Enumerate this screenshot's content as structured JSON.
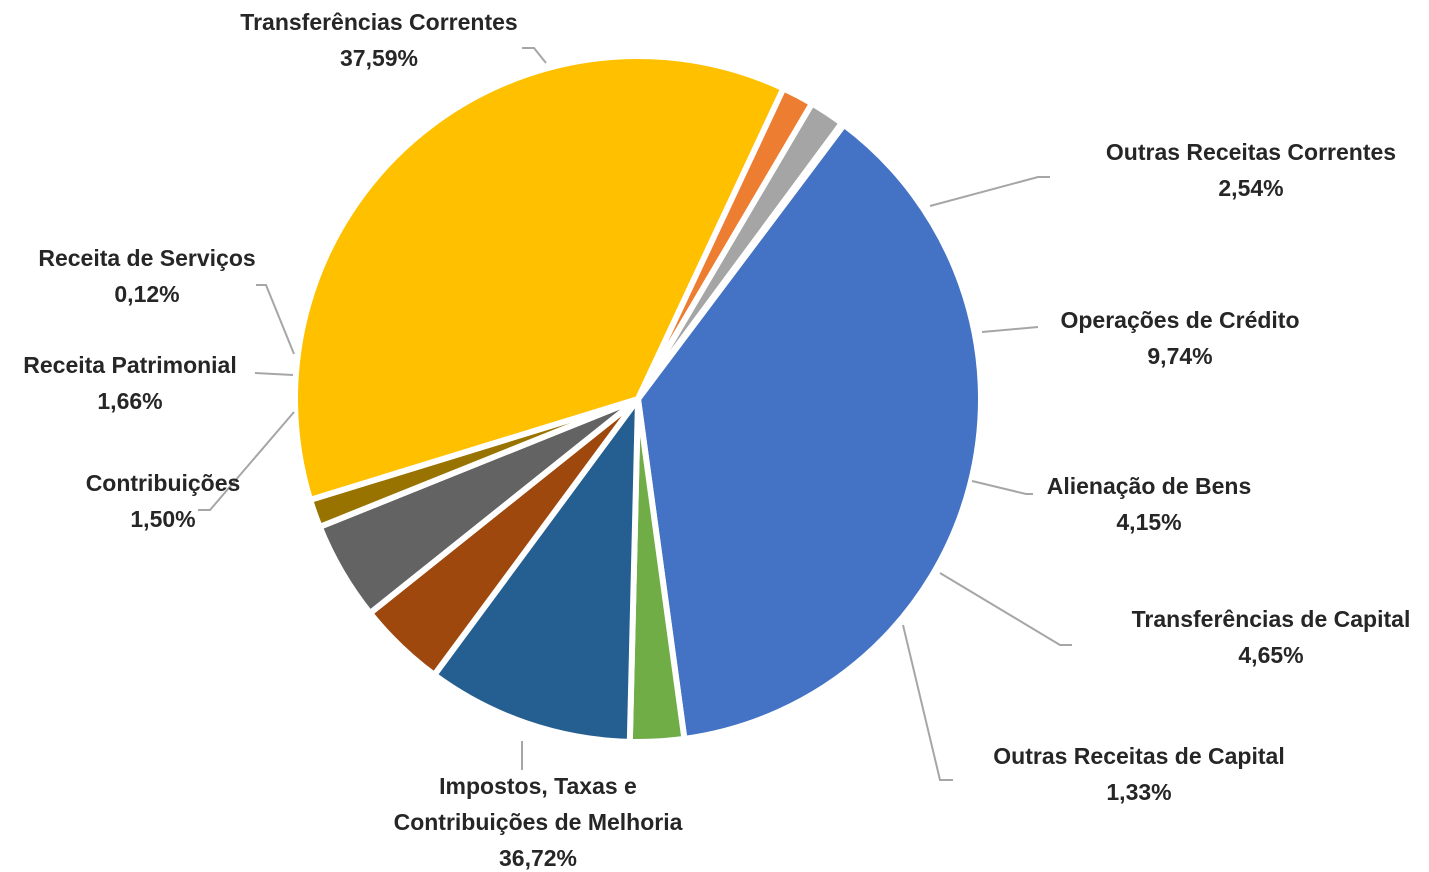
{
  "chart_data": {
    "type": "pie",
    "title": "",
    "legend": "none",
    "slices": [
      {
        "label": "Transferências Correntes",
        "value": 37.59,
        "display": "37,59%",
        "color": "#4472C4"
      },
      {
        "label": "Outras Receitas Correntes",
        "value": 2.54,
        "display": "2,54%",
        "color": "#70AD47"
      },
      {
        "label": "Operações de Crédito",
        "value": 9.74,
        "display": "9,74%",
        "color": "#255E91"
      },
      {
        "label": "Alienação de Bens",
        "value": 4.15,
        "display": "4,15%",
        "color": "#9E480E"
      },
      {
        "label": "Transferências de Capital",
        "value": 4.65,
        "display": "4,65%",
        "color": "#636363"
      },
      {
        "label": "Outras Receitas de Capital",
        "value": 1.33,
        "display": "1,33%",
        "color": "#997300"
      },
      {
        "label": "Impostos, Taxas e Contribuições de Melhoria",
        "value": 36.72,
        "display": "36,72%",
        "color": "#FFC000"
      },
      {
        "label": "Contribuições",
        "value": 1.5,
        "display": "1,50%",
        "color": "#ED7D31"
      },
      {
        "label": "Receita Patrimonial",
        "value": 1.66,
        "display": "1,66%",
        "color": "#A5A5A5"
      },
      {
        "label": "Receita de Serviços",
        "value": 0.12,
        "display": "0,12%",
        "color": "#5B9BD5"
      }
    ]
  }
}
